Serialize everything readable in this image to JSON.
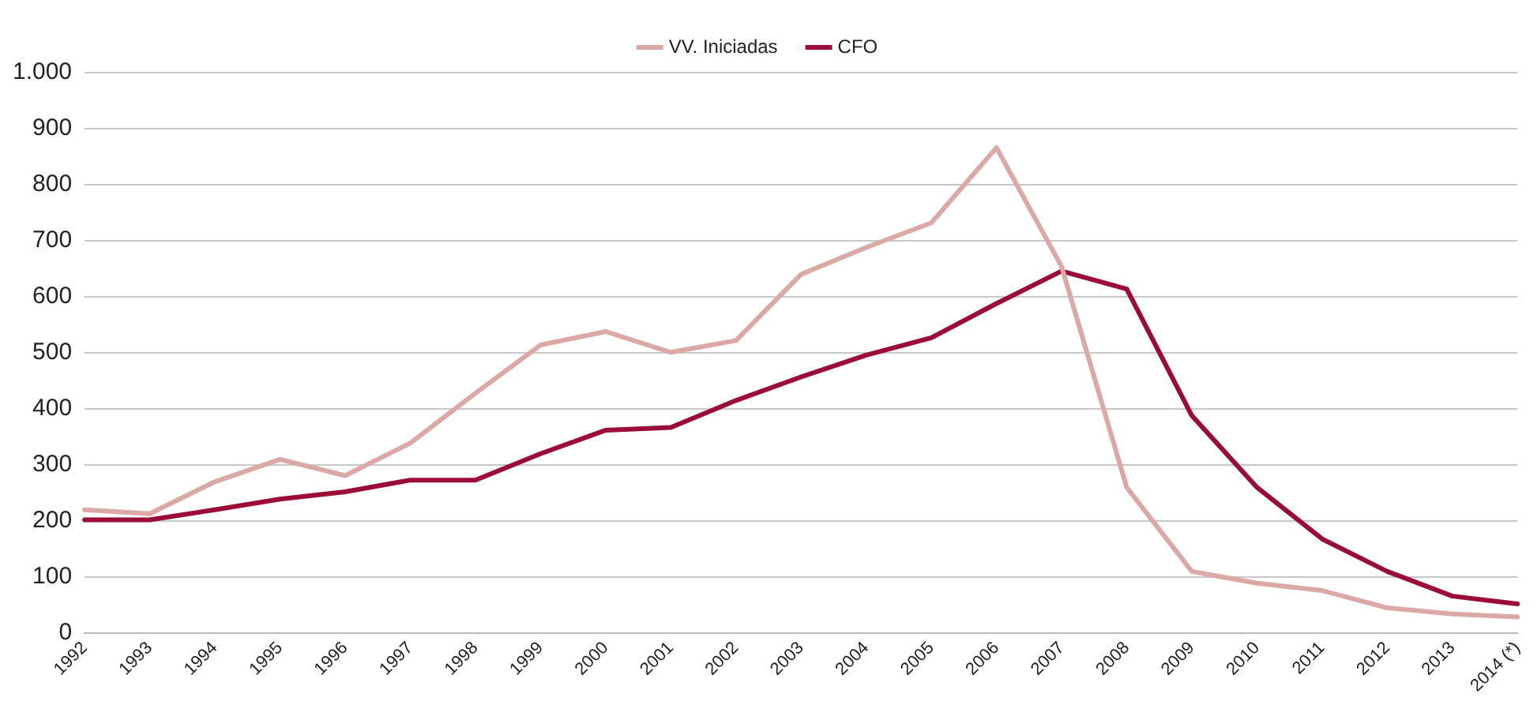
{
  "chart_data": {
    "type": "line",
    "categories": [
      "1992",
      "1993",
      "1994",
      "1995",
      "1996",
      "1997",
      "1998",
      "1999",
      "2000",
      "2001",
      "2002",
      "2003",
      "2004",
      "2005",
      "2006",
      "2007",
      "2008",
      "2009",
      "2010",
      "2011",
      "2012",
      "2013",
      "2014 (*)"
    ],
    "series": [
      {
        "name": "VV. Iniciadas",
        "color": "#dba8a6",
        "values": [
          220,
          213,
          270,
          310,
          281,
          339,
          428,
          514,
          538,
          501,
          522,
          640,
          688,
          732,
          866,
          654,
          260,
          110,
          89,
          76,
          45,
          34,
          29
        ]
      },
      {
        "name": "CFO",
        "color": "#9b0d36",
        "values": [
          202,
          202,
          220,
          239,
          252,
          273,
          273,
          320,
          362,
          367,
          415,
          457,
          496,
          527,
          588,
          646,
          614,
          388,
          260,
          168,
          110,
          66,
          52
        ]
      }
    ],
    "ylim": [
      0,
      1000
    ],
    "yticks": [
      0,
      100,
      200,
      300,
      400,
      500,
      600,
      700,
      800,
      900,
      {
        "value": 1000,
        "label": "1.000"
      }
    ],
    "grid": "y",
    "legend": "top",
    "marker": "none",
    "line_style": "solid"
  }
}
